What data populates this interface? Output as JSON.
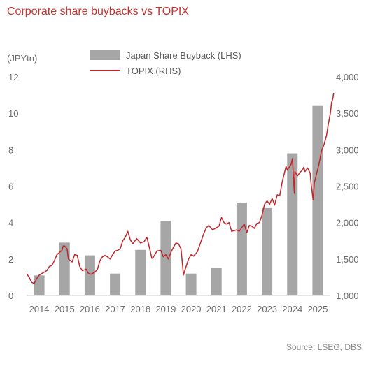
{
  "title": "Corporate share buybacks vs TOPIX",
  "source": "Source: LSEG, DBS",
  "colors": {
    "title": "#c9302c",
    "bar": "#a6a6a6",
    "line": "#c0272d",
    "axis_text": "#6b6b6b"
  },
  "chart_data": {
    "type": "bar+line",
    "title": "Corporate share buybacks vs TOPIX",
    "left_axis_unit": "(JPYtn)",
    "left_ylim": [
      0,
      12
    ],
    "left_ticks": [
      "0",
      "2",
      "4",
      "6",
      "8",
      "10",
      "12"
    ],
    "right_ylim": [
      1000,
      4000
    ],
    "right_ticks": [
      "1,000",
      "1,500",
      "2,000",
      "2,500",
      "3,000",
      "3,500",
      "4,000"
    ],
    "categories": [
      "2014",
      "2015",
      "2016",
      "2017",
      "2018",
      "2019",
      "2020",
      "2021",
      "2022",
      "2023",
      "2024",
      "2025"
    ],
    "grid": false,
    "legend_position": "top",
    "series": [
      {
        "name": "Japan Share Buyback (LHS)",
        "type": "bar",
        "axis": "left",
        "values": [
          1.1,
          2.9,
          2.2,
          1.2,
          2.5,
          4.1,
          1.2,
          1.5,
          5.1,
          4.8,
          7.8,
          10.4
        ]
      },
      {
        "name": "TOPIX (RHS)",
        "type": "line",
        "axis": "right",
        "points": [
          [
            2014.0,
            1300
          ],
          [
            2014.1,
            1250
          ],
          [
            2014.2,
            1180
          ],
          [
            2014.3,
            1165
          ],
          [
            2014.4,
            1230
          ],
          [
            2014.5,
            1280
          ],
          [
            2014.6,
            1300
          ],
          [
            2014.7,
            1320
          ],
          [
            2014.8,
            1340
          ],
          [
            2014.9,
            1400
          ],
          [
            2015.0,
            1410
          ],
          [
            2015.1,
            1480
          ],
          [
            2015.2,
            1560
          ],
          [
            2015.3,
            1590
          ],
          [
            2015.4,
            1620
          ],
          [
            2015.45,
            1680
          ],
          [
            2015.5,
            1680
          ],
          [
            2015.6,
            1640
          ],
          [
            2015.65,
            1500
          ],
          [
            2015.8,
            1460
          ],
          [
            2015.9,
            1560
          ],
          [
            2016.0,
            1550
          ],
          [
            2016.1,
            1400
          ],
          [
            2016.2,
            1340
          ],
          [
            2016.35,
            1360
          ],
          [
            2016.45,
            1300
          ],
          [
            2016.55,
            1290
          ],
          [
            2016.7,
            1320
          ],
          [
            2016.8,
            1360
          ],
          [
            2016.9,
            1480
          ],
          [
            2017.0,
            1530
          ],
          [
            2017.1,
            1550
          ],
          [
            2017.2,
            1530
          ],
          [
            2017.3,
            1500
          ],
          [
            2017.4,
            1560
          ],
          [
            2017.5,
            1610
          ],
          [
            2017.6,
            1620
          ],
          [
            2017.7,
            1640
          ],
          [
            2017.8,
            1750
          ],
          [
            2017.9,
            1800
          ],
          [
            2018.0,
            1880
          ],
          [
            2018.1,
            1760
          ],
          [
            2018.2,
            1710
          ],
          [
            2018.35,
            1780
          ],
          [
            2018.5,
            1720
          ],
          [
            2018.65,
            1740
          ],
          [
            2018.75,
            1800
          ],
          [
            2018.85,
            1660
          ],
          [
            2018.95,
            1510
          ],
          [
            2019.0,
            1520
          ],
          [
            2019.15,
            1610
          ],
          [
            2019.3,
            1620
          ],
          [
            2019.4,
            1530
          ],
          [
            2019.5,
            1560
          ],
          [
            2019.6,
            1500
          ],
          [
            2019.7,
            1590
          ],
          [
            2019.8,
            1660
          ],
          [
            2019.9,
            1720
          ],
          [
            2020.0,
            1710
          ],
          [
            2020.1,
            1640
          ],
          [
            2020.2,
            1280
          ],
          [
            2020.25,
            1340
          ],
          [
            2020.4,
            1500
          ],
          [
            2020.5,
            1560
          ],
          [
            2020.6,
            1540
          ],
          [
            2020.75,
            1600
          ],
          [
            2020.85,
            1700
          ],
          [
            2020.95,
            1800
          ],
          [
            2021.0,
            1850
          ],
          [
            2021.1,
            1930
          ],
          [
            2021.2,
            1960
          ],
          [
            2021.35,
            1900
          ],
          [
            2021.5,
            1930
          ],
          [
            2021.6,
            1950
          ],
          [
            2021.7,
            2070
          ],
          [
            2021.8,
            2000
          ],
          [
            2021.9,
            1980
          ],
          [
            2022.0,
            2000
          ],
          [
            2022.1,
            1880
          ],
          [
            2022.2,
            1890
          ],
          [
            2022.3,
            1900
          ],
          [
            2022.4,
            1880
          ],
          [
            2022.5,
            1930
          ],
          [
            2022.6,
            1980
          ],
          [
            2022.7,
            1860
          ],
          [
            2022.8,
            1960
          ],
          [
            2022.9,
            1950
          ],
          [
            2023.0,
            1920
          ],
          [
            2023.1,
            1990
          ],
          [
            2023.2,
            2000
          ],
          [
            2023.3,
            2100
          ],
          [
            2023.4,
            2250
          ],
          [
            2023.5,
            2300
          ],
          [
            2023.6,
            2250
          ],
          [
            2023.7,
            2330
          ],
          [
            2023.8,
            2240
          ],
          [
            2023.9,
            2380
          ],
          [
            2024.0,
            2370
          ],
          [
            2024.1,
            2560
          ],
          [
            2024.2,
            2700
          ],
          [
            2024.25,
            2770
          ],
          [
            2024.3,
            2720
          ],
          [
            2024.45,
            2800
          ],
          [
            2024.5,
            2880
          ],
          [
            2024.58,
            2400
          ],
          [
            2024.6,
            2700
          ],
          [
            2024.7,
            2640
          ],
          [
            2024.8,
            2690
          ],
          [
            2024.9,
            2720
          ],
          [
            2024.95,
            2760
          ],
          [
            2025.0,
            2700
          ],
          [
            2025.1,
            2750
          ],
          [
            2025.2,
            2680
          ],
          [
            2025.25,
            2500
          ],
          [
            2025.32,
            2310
          ],
          [
            2025.37,
            2550
          ],
          [
            2025.45,
            2660
          ],
          [
            2025.55,
            2800
          ],
          [
            2025.65,
            2980
          ],
          [
            2025.75,
            3070
          ],
          [
            2025.85,
            3200
          ],
          [
            2025.92,
            3350
          ],
          [
            2026.0,
            3500
          ],
          [
            2026.05,
            3650
          ],
          [
            2026.1,
            3700
          ],
          [
            2026.13,
            3780
          ]
        ]
      }
    ]
  }
}
